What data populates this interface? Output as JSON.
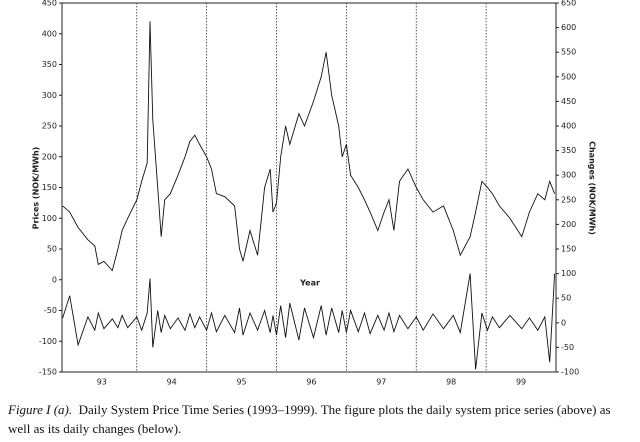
{
  "chart_data": {
    "type": "line",
    "x_label": "Year",
    "y_label": "Prices (NOK/MWh)",
    "y2_label": "Changes (NOK/MWh)",
    "x": [
      1992.94,
      1993.04,
      1993.16,
      1993.3,
      1993.4,
      1993.45,
      1993.53,
      1993.65,
      1993.73,
      1993.79,
      1993.87,
      1994.0,
      1994.07,
      1994.15,
      1994.19,
      1994.23,
      1994.3,
      1994.35,
      1994.4,
      1994.48,
      1994.59,
      1994.69,
      1994.76,
      1994.83,
      1994.9,
      1995.0,
      1995.07,
      1995.14,
      1995.26,
      1995.4,
      1995.47,
      1995.52,
      1995.62,
      1995.73,
      1995.83,
      1995.91,
      1995.95,
      1996.0,
      1996.06,
      1996.13,
      1996.19,
      1996.32,
      1996.4,
      1996.53,
      1996.64,
      1996.71,
      1996.79,
      1996.89,
      1996.94,
      1997.0,
      1997.06,
      1997.17,
      1997.26,
      1997.34,
      1997.45,
      1997.54,
      1997.61,
      1997.68,
      1997.76,
      1997.88,
      1998.0,
      1998.1,
      1998.24,
      1998.39,
      1998.53,
      1998.63,
      1998.77,
      1998.85,
      1998.94,
      1999.02,
      1999.09,
      1999.19,
      1999.34,
      1999.51,
      1999.62,
      1999.74,
      1999.84,
      1999.91,
      1999.98
    ],
    "series": [
      {
        "name": "Prices",
        "color": "#111111",
        "values": [
          120,
          110,
          85,
          65,
          55,
          25,
          30,
          15,
          50,
          80,
          100,
          130,
          160,
          190,
          420,
          260,
          150,
          70,
          130,
          140,
          170,
          200,
          225,
          235,
          220,
          200,
          180,
          140,
          135,
          120,
          50,
          30,
          80,
          40,
          150,
          180,
          110,
          125,
          200,
          250,
          220,
          270,
          250,
          290,
          330,
          370,
          300,
          250,
          200,
          220,
          170,
          150,
          130,
          110,
          80,
          110,
          130,
          80,
          160,
          180,
          150,
          130,
          110,
          120,
          80,
          40,
          70,
          110,
          160,
          150,
          140,
          120,
          100,
          70,
          110,
          140,
          130,
          160,
          140
        ]
      },
      {
        "name": "Changes",
        "color": "#111111",
        "axis": "y2",
        "values": [
          10,
          55,
          -45,
          12,
          -15,
          20,
          -12,
          8,
          -10,
          15,
          -10,
          12,
          -15,
          20,
          90,
          -50,
          25,
          -20,
          15,
          -12,
          10,
          -15,
          18,
          -10,
          12,
          -15,
          20,
          -18,
          15,
          -20,
          30,
          -25,
          20,
          -15,
          25,
          -20,
          15,
          -25,
          35,
          -30,
          40,
          -35,
          30,
          -30,
          35,
          -25,
          30,
          -20,
          25,
          -20,
          25,
          -18,
          20,
          -22,
          15,
          -15,
          20,
          -18,
          15,
          -12,
          12,
          -15,
          18,
          -12,
          15,
          -20,
          100,
          -95,
          20,
          -15,
          12,
          -10,
          15,
          -12,
          10,
          -15,
          12,
          -80,
          100
        ]
      }
    ],
    "xlim": [
      1992.93,
      2000.0
    ],
    "xticks": [
      {
        "value": 1993.5,
        "label": "93"
      },
      {
        "value": 1994.5,
        "label": "94"
      },
      {
        "value": 1995.5,
        "label": "95"
      },
      {
        "value": 1996.5,
        "label": "96"
      },
      {
        "value": 1997.5,
        "label": "97"
      },
      {
        "value": 1998.5,
        "label": "98"
      },
      {
        "value": 1999.5,
        "label": "99"
      }
    ],
    "vlines": [
      1994,
      1995,
      1996,
      1997,
      1998,
      1999
    ],
    "ylim": [
      -150,
      450
    ],
    "yticks": [
      -150,
      -100,
      -50,
      0,
      50,
      100,
      150,
      200,
      250,
      300,
      350,
      400,
      450
    ],
    "y2lim": [
      -100,
      650
    ],
    "y2ticks": [
      -100,
      -50,
      0,
      50,
      100,
      150,
      200,
      250,
      300,
      350,
      400,
      450,
      500,
      550,
      600,
      650
    ]
  },
  "caption": {
    "label": "Figure I (a).",
    "text": "Daily System Price Time Series (1993–1999). The figure plots the daily system price series (above) as well as its daily changes (below)."
  }
}
